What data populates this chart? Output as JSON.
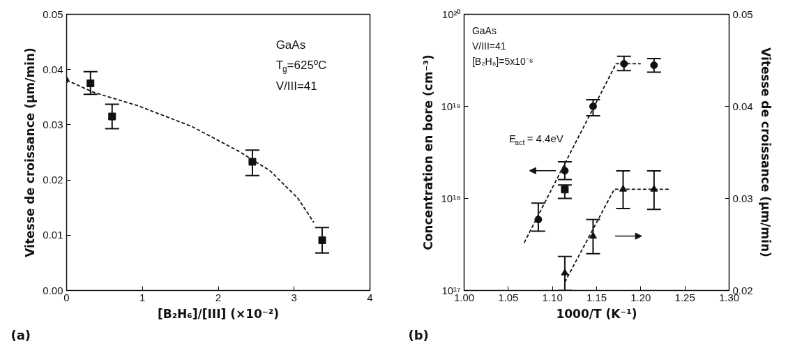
{
  "chart_data": [
    {
      "type": "scatter",
      "title": "(a)",
      "xlabel": "[B₂H₆]/[III] (×10⁻²)",
      "ylabel": "Vitesse de croissance (µm/min)",
      "xlim": [
        0,
        4
      ],
      "ylim": [
        0,
        0.05
      ],
      "xticks": [
        0,
        1,
        2,
        3,
        4
      ],
      "yticks": [
        {
          "value": 0,
          "label": "0.00"
        },
        {
          "value": 0.01,
          "label": "0.01"
        },
        {
          "value": 0.02,
          "label": "0.02"
        },
        {
          "value": 0.03,
          "label": "0.03"
        },
        {
          "value": 0.04,
          "label": "0.04"
        },
        {
          "value": 0.05,
          "label": "0.05"
        }
      ],
      "grid": false,
      "annotations": [
        "GaAs",
        "T$_{g}$=625ºC",
        "V/III=41"
      ],
      "series": [
        {
          "marker": "diamond",
          "color": "#111111",
          "x": [
            0
          ],
          "values": [
            0.0381
          ]
        },
        {
          "marker": "square",
          "color": "#111111",
          "x": [
            0.315,
            0.6,
            2.45,
            3.37
          ],
          "values": [
            0.0375,
            0.0315,
            0.0233,
            0.0091
          ],
          "errors": [
            [
              0.0355,
              0.0396
            ],
            [
              0.0293,
              0.0337
            ],
            [
              0.0208,
              0.0254
            ],
            [
              0.0068,
              0.0114
            ]
          ]
        },
        {
          "type": "line",
          "line_style": "dashed",
          "marker": "none",
          "color": "#111111",
          "x": [
            0,
            0.35,
            0.66,
            0.93,
            1.65,
            2.27,
            2.68,
            3.05,
            3.26
          ],
          "values": [
            0.0381,
            0.0359,
            0.0346,
            0.0335,
            0.0297,
            0.0252,
            0.0217,
            0.0167,
            0.0123
          ]
        }
      ]
    },
    {
      "type": "scatter",
      "title": "(b)",
      "xlabel": "1000/T (K⁻¹)",
      "ylabel": "Concentration en bore (cm⁻³)",
      "y2label": "Vitesse de croissance (µm/min)",
      "log": "y",
      "xlim": [
        1.0,
        1.3
      ],
      "ylim": [
        1e+17,
        1e+20
      ],
      "y2lim": [
        0.02,
        0.05
      ],
      "xticks": [
        {
          "value": 1.0,
          "label": "1.00"
        },
        {
          "value": 1.05,
          "label": "1.05"
        },
        {
          "value": 1.1,
          "label": "1.10"
        },
        {
          "value": 1.15,
          "label": "1.15"
        },
        {
          "value": 1.2,
          "label": "1.20"
        },
        {
          "value": 1.25,
          "label": "1.25"
        },
        {
          "value": 1.3,
          "label": "1.30"
        }
      ],
      "yticks": [
        {
          "value": 1e+17,
          "label": "10¹⁷"
        },
        {
          "value": 1e+18,
          "label": "10¹⁸"
        },
        {
          "value": 1e+19,
          "label": "10¹⁹"
        },
        {
          "value": 1e+20,
          "label": "10²⁰"
        }
      ],
      "y2ticks": [
        0.02,
        0.03,
        0.04,
        0.05
      ],
      "grid": false,
      "annotations": [
        "GaAs",
        "V/III=41",
        "[B₂H₆]=5x10⁻⁶",
        "E$_{act}$ = 4.4eV"
      ],
      "series": [
        {
          "marker": "circle",
          "color": "#111111",
          "x": [
            1.084,
            1.114,
            1.146,
            1.181,
            1.215
          ],
          "values": [
            5.9e+17,
            2e+18,
            1e+19,
            2.9e+19,
            2.8e+19
          ],
          "errors": [
            [
              4.4e+17,
              8.9e+17
            ],
            [
              1.6e+18,
              2.5e+18
            ],
            [
              7.9e+18,
              1.18e+19
            ],
            [
              2.45e+19,
              3.5e+19
            ],
            [
              2.35e+19,
              3.3e+19
            ]
          ]
        },
        {
          "marker": "square",
          "color": "#111111",
          "x": [
            1.114
          ],
          "values": [
            1.25e+18
          ],
          "errors": [
            [
              1e+18,
              1.4e+18
            ]
          ]
        },
        {
          "type": "line",
          "line_style": "dashed",
          "marker": "none",
          "color": "#111111",
          "x": [
            1.068,
            1.172,
            1.2
          ],
          "values": [
            3.3e+17,
            2.9e+19,
            2.9e+19
          ]
        },
        {
          "marker": "triangle",
          "axis": "y2",
          "color": "#111111",
          "x": [
            1.114,
            1.146,
            1.18,
            1.215
          ],
          "values": [
            0.0219,
            0.0259,
            0.031,
            0.031
          ],
          "errors": [
            [
              0.02,
              0.0237
            ],
            [
              0.024,
              0.0277
            ],
            [
              0.0289,
              0.033
            ],
            [
              0.0288,
              0.033
            ]
          ]
        },
        {
          "type": "line",
          "line_style": "dashed",
          "marker": "none",
          "axis": "y2",
          "color": "#111111",
          "x": [
            1.114,
            1.17,
            1.234
          ],
          "values": [
            0.0209,
            0.031,
            0.031
          ]
        }
      ]
    }
  ]
}
